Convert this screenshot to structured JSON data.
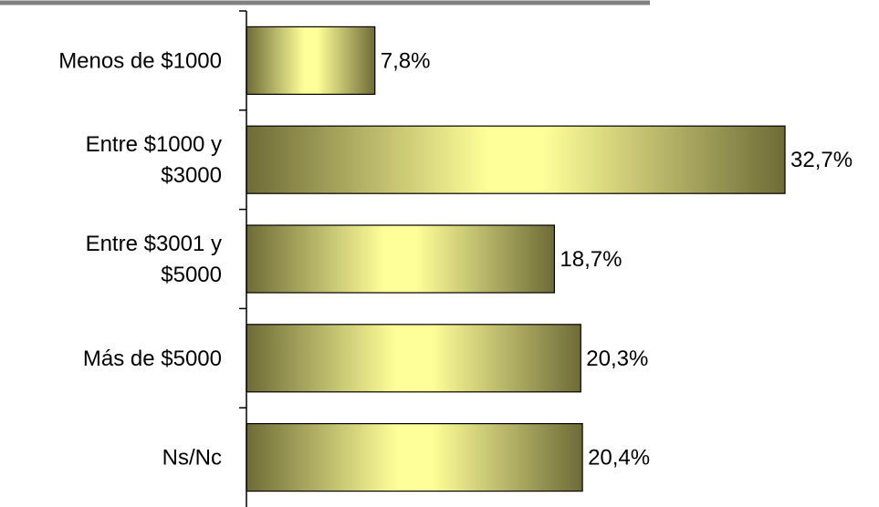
{
  "chart_data": {
    "type": "bar",
    "orientation": "horizontal",
    "categories": [
      [
        "Menos de $1000"
      ],
      [
        "Entre $1000 y",
        "$3000"
      ],
      [
        "Entre $3001 y",
        "$5000"
      ],
      [
        "Más de $5000"
      ],
      [
        "Ns/Nc"
      ]
    ],
    "values": [
      7.8,
      32.7,
      18.7,
      20.3,
      20.4
    ],
    "value_labels": [
      "7,8%",
      "32,7%",
      "18,7%",
      "20,3%",
      "20,4%"
    ],
    "xlim": [
      0,
      40
    ],
    "grid": false,
    "legend": "none"
  },
  "colors": {
    "bar_dark": "#6e6b37",
    "bar_light": "#ffff99",
    "bar_stroke": "#000000",
    "axis": "#000000",
    "top_rule": "#808080"
  }
}
